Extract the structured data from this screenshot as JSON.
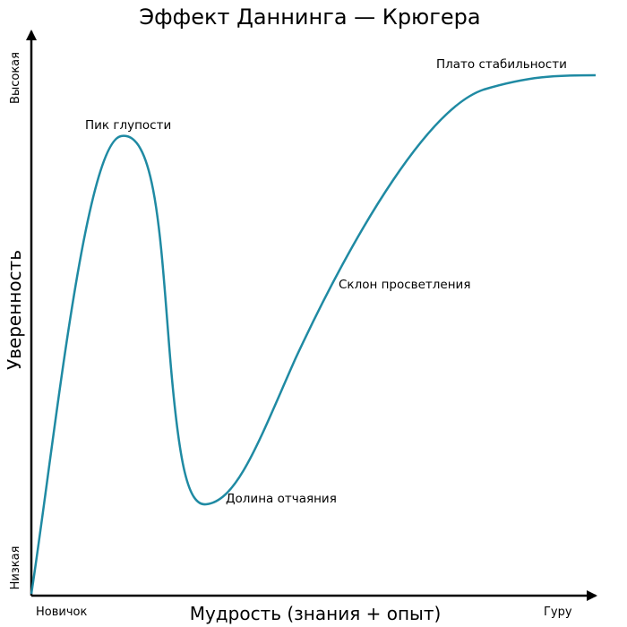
{
  "title": "Эффект Даннинга — Крюгера",
  "axes": {
    "x_label": "Мудрость (знания + опыт)",
    "y_label": "Уверенность",
    "x_min_label": "Новичок",
    "x_max_label": "Гуру",
    "y_min_label": "Низкая",
    "y_max_label": "Высокая"
  },
  "annotations": {
    "peak": "Пик глупости",
    "valley": "Долина отчаяния",
    "slope": "Склон просветления",
    "plateau": "Плато стабильности"
  },
  "colors": {
    "curve": "#1f8aa3",
    "axes": "#000000"
  }
}
